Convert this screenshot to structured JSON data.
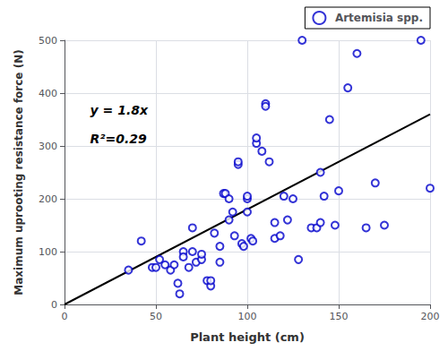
{
  "chart_data": {
    "type": "scatter",
    "xlabel": "Plant height (cm)",
    "ylabel": "Maximum uprooting resistance force (N)",
    "annotations": [
      "y = 1.8x",
      "R²=0.29"
    ],
    "series": [
      {
        "name": "Artemisia spp.",
        "type": "scatter",
        "color": "#0000CC",
        "marker": "circle",
        "x": [
          35,
          42,
          48,
          50,
          52,
          55,
          58,
          60,
          62,
          63,
          65,
          65,
          68,
          70,
          70,
          72,
          75,
          75,
          78,
          80,
          80,
          82,
          85,
          85,
          87,
          88,
          90,
          90,
          92,
          93,
          95,
          95,
          97,
          98,
          100,
          100,
          100,
          102,
          103,
          105,
          105,
          108,
          110,
          110,
          112,
          115,
          115,
          118,
          120,
          122,
          125,
          128,
          130,
          135,
          138,
          140,
          140,
          142,
          145,
          148,
          150,
          155,
          160,
          165,
          170,
          175,
          195,
          200
        ],
        "values": [
          65,
          120,
          70,
          70,
          85,
          75,
          65,
          75,
          40,
          20,
          100,
          90,
          70,
          100,
          145,
          80,
          85,
          95,
          45,
          35,
          45,
          135,
          110,
          80,
          210,
          210,
          160,
          200,
          175,
          130,
          265,
          270,
          115,
          110,
          200,
          175,
          205,
          125,
          120,
          305,
          315,
          290,
          380,
          375,
          270,
          125,
          155,
          130,
          205,
          160,
          200,
          85,
          500,
          145,
          145,
          250,
          155,
          205,
          350,
          150,
          215,
          410,
          475,
          145,
          230,
          150,
          500,
          220
        ]
      },
      {
        "type": "line",
        "color": "#000000",
        "line_style": "solid",
        "x": [
          0,
          200
        ],
        "values": [
          0,
          360
        ]
      }
    ],
    "xlim": [
      0,
      200
    ],
    "ylim": [
      0,
      500
    ],
    "xticks": [
      0,
      50,
      100,
      150,
      200
    ],
    "yticks": [
      0,
      100,
      200,
      300,
      400,
      500
    ],
    "grid": true,
    "legend": "upper right"
  }
}
